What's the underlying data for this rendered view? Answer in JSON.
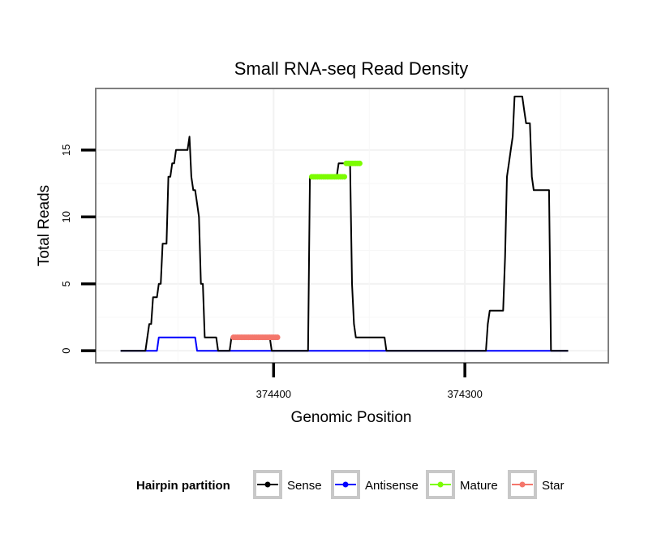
{
  "chart_data": {
    "type": "line",
    "title": "Small RNA-seq Read Density",
    "xlabel": "Genomic Position",
    "ylabel": "Total Reads",
    "x_reversed": true,
    "xlim": [
      374493,
      374225
    ],
    "ylim": [
      -0.9,
      19.6
    ],
    "x_ticks": [
      374400,
      374300
    ],
    "x_tick_labels": [
      "374400",
      "374300"
    ],
    "y_ticks": [
      0,
      5,
      10,
      15
    ],
    "y_tick_labels": [
      "0",
      "5",
      "10",
      "15"
    ],
    "grid": true,
    "legend": {
      "title": "Hairpin partition",
      "position": "bottom",
      "entries": [
        {
          "name": "Sense",
          "color": "#000000"
        },
        {
          "name": "Antisense",
          "color": "#0000ff"
        },
        {
          "name": "Mature",
          "color": "#7cfc00"
        },
        {
          "name": "Star",
          "color": "#f4766b"
        }
      ]
    },
    "series": [
      {
        "name": "Sense",
        "color": "#000000",
        "points": [
          [
            374480,
            0
          ],
          [
            374467,
            0
          ],
          [
            374465,
            2
          ],
          [
            374464,
            2
          ],
          [
            374463,
            4
          ],
          [
            374461,
            4
          ],
          [
            374460,
            5
          ],
          [
            374459,
            5
          ],
          [
            374458,
            8
          ],
          [
            374456,
            8
          ],
          [
            374455,
            13
          ],
          [
            374454,
            13
          ],
          [
            374453,
            14
          ],
          [
            374452,
            14
          ],
          [
            374451,
            15
          ],
          [
            374445,
            15
          ],
          [
            374444,
            16
          ],
          [
            374443,
            13
          ],
          [
            374442,
            12
          ],
          [
            374441,
            12
          ],
          [
            374440,
            11
          ],
          [
            374439,
            10
          ],
          [
            374438,
            5
          ],
          [
            374437,
            5
          ],
          [
            374436,
            1
          ],
          [
            374430,
            1
          ],
          [
            374429,
            0
          ],
          [
            374423,
            0
          ],
          [
            374422,
            1
          ],
          [
            374402,
            1
          ],
          [
            374401,
            0
          ],
          [
            374382,
            0
          ],
          [
            374381,
            13
          ],
          [
            374367,
            13
          ],
          [
            374366,
            14
          ],
          [
            374360,
            14
          ],
          [
            374359,
            5
          ],
          [
            374358,
            2
          ],
          [
            374357,
            1
          ],
          [
            374342,
            1
          ],
          [
            374341,
            0
          ],
          [
            374289,
            0
          ],
          [
            374288,
            2
          ],
          [
            374287,
            3
          ],
          [
            374280,
            3
          ],
          [
            374279,
            7
          ],
          [
            374278,
            13
          ],
          [
            374277,
            14
          ],
          [
            374276,
            15
          ],
          [
            374275,
            16
          ],
          [
            374274,
            19
          ],
          [
            374270,
            19
          ],
          [
            374269,
            18
          ],
          [
            374268,
            17
          ],
          [
            374266,
            17
          ],
          [
            374265,
            13
          ],
          [
            374264,
            12
          ],
          [
            374256,
            12
          ],
          [
            374255,
            0
          ],
          [
            374246,
            0
          ]
        ]
      },
      {
        "name": "Antisense",
        "color": "#0000ff",
        "points": [
          [
            374480,
            0
          ],
          [
            374461,
            0
          ],
          [
            374460,
            1
          ],
          [
            374441,
            1
          ],
          [
            374440,
            0
          ],
          [
            374246,
            0
          ]
        ]
      }
    ],
    "segments": [
      {
        "name": "Mature",
        "color": "#7cfc00",
        "x_start": 374380,
        "x_end": 374363,
        "y": 13
      },
      {
        "name": "Mature",
        "color": "#7cfc00",
        "x_start": 374362,
        "x_end": 374355,
        "y": 14
      },
      {
        "name": "Star",
        "color": "#f4766b",
        "x_start": 374421,
        "x_end": 374398,
        "y": 1
      }
    ]
  }
}
